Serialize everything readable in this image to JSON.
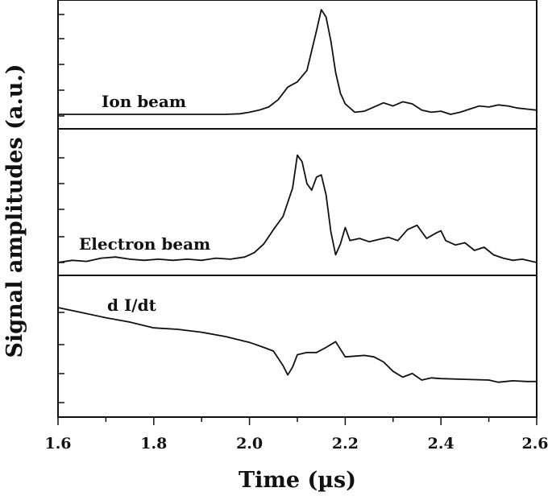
{
  "chart_data": {
    "type": "line",
    "xlabel": "Time (µs)",
    "ylabel": "Signal amplitudes (a.u.)",
    "xlim": [
      1.6,
      2.6
    ],
    "xticks": [
      "1.6",
      "1.8",
      "2.0",
      "2.2",
      "2.4",
      "2.6"
    ],
    "grid": false,
    "panels": [
      {
        "name": "Ion beam",
        "ylim": [
          0,
          1
        ],
        "points": [
          [
            1.6,
            0.0
          ],
          [
            1.95,
            0.0
          ],
          [
            1.98,
            0.005
          ],
          [
            2.0,
            0.02
          ],
          [
            2.02,
            0.04
          ],
          [
            2.04,
            0.07
          ],
          [
            2.06,
            0.14
          ],
          [
            2.08,
            0.26
          ],
          [
            2.1,
            0.31
          ],
          [
            2.12,
            0.42
          ],
          [
            2.14,
            0.8
          ],
          [
            2.15,
            1.0
          ],
          [
            2.16,
            0.93
          ],
          [
            2.17,
            0.7
          ],
          [
            2.18,
            0.4
          ],
          [
            2.19,
            0.2
          ],
          [
            2.2,
            0.1
          ],
          [
            2.22,
            0.02
          ],
          [
            2.24,
            0.03
          ],
          [
            2.26,
            0.07
          ],
          [
            2.28,
            0.11
          ],
          [
            2.3,
            0.08
          ],
          [
            2.32,
            0.12
          ],
          [
            2.34,
            0.1
          ],
          [
            2.36,
            0.04
          ],
          [
            2.38,
            0.02
          ],
          [
            2.4,
            0.03
          ],
          [
            2.42,
            0.0
          ],
          [
            2.44,
            0.02
          ],
          [
            2.46,
            0.05
          ],
          [
            2.48,
            0.08
          ],
          [
            2.5,
            0.07
          ],
          [
            2.52,
            0.09
          ],
          [
            2.54,
            0.08
          ],
          [
            2.56,
            0.06
          ],
          [
            2.58,
            0.05
          ],
          [
            2.6,
            0.04
          ]
        ]
      },
      {
        "name": "Electron beam",
        "ylim": [
          0,
          1
        ],
        "points": [
          [
            1.6,
            0.0
          ],
          [
            1.63,
            0.02
          ],
          [
            1.66,
            0.01
          ],
          [
            1.69,
            0.04
          ],
          [
            1.72,
            0.05
          ],
          [
            1.75,
            0.03
          ],
          [
            1.78,
            0.02
          ],
          [
            1.81,
            0.03
          ],
          [
            1.84,
            0.02
          ],
          [
            1.87,
            0.03
          ],
          [
            1.9,
            0.02
          ],
          [
            1.93,
            0.04
          ],
          [
            1.96,
            0.03
          ],
          [
            1.99,
            0.05
          ],
          [
            2.01,
            0.09
          ],
          [
            2.03,
            0.17
          ],
          [
            2.05,
            0.3
          ],
          [
            2.07,
            0.42
          ],
          [
            2.09,
            0.68
          ],
          [
            2.1,
            0.98
          ],
          [
            2.11,
            0.92
          ],
          [
            2.12,
            0.72
          ],
          [
            2.13,
            0.66
          ],
          [
            2.14,
            0.78
          ],
          [
            2.15,
            0.8
          ],
          [
            2.16,
            0.62
          ],
          [
            2.17,
            0.28
          ],
          [
            2.18,
            0.07
          ],
          [
            2.19,
            0.17
          ],
          [
            2.2,
            0.32
          ],
          [
            2.21,
            0.2
          ],
          [
            2.23,
            0.22
          ],
          [
            2.25,
            0.19
          ],
          [
            2.27,
            0.21
          ],
          [
            2.29,
            0.23
          ],
          [
            2.31,
            0.2
          ],
          [
            2.33,
            0.3
          ],
          [
            2.35,
            0.34
          ],
          [
            2.37,
            0.22
          ],
          [
            2.39,
            0.27
          ],
          [
            2.4,
            0.29
          ],
          [
            2.41,
            0.2
          ],
          [
            2.43,
            0.16
          ],
          [
            2.45,
            0.18
          ],
          [
            2.47,
            0.11
          ],
          [
            2.49,
            0.14
          ],
          [
            2.51,
            0.07
          ],
          [
            2.53,
            0.04
          ],
          [
            2.55,
            0.02
          ],
          [
            2.57,
            0.03
          ],
          [
            2.59,
            0.01
          ],
          [
            2.6,
            0.0
          ]
        ]
      },
      {
        "name": "d I/dt",
        "ylim": [
          0,
          1
        ],
        "points": [
          [
            1.6,
            1.0
          ],
          [
            1.65,
            0.93
          ],
          [
            1.7,
            0.86
          ],
          [
            1.75,
            0.8
          ],
          [
            1.8,
            0.72
          ],
          [
            1.85,
            0.7
          ],
          [
            1.9,
            0.66
          ],
          [
            1.95,
            0.6
          ],
          [
            2.0,
            0.52
          ],
          [
            2.03,
            0.45
          ],
          [
            2.05,
            0.4
          ],
          [
            2.07,
            0.2
          ],
          [
            2.08,
            0.07
          ],
          [
            2.09,
            0.18
          ],
          [
            2.1,
            0.35
          ],
          [
            2.12,
            0.38
          ],
          [
            2.14,
            0.38
          ],
          [
            2.16,
            0.45
          ],
          [
            2.18,
            0.53
          ],
          [
            2.2,
            0.32
          ],
          [
            2.22,
            0.33
          ],
          [
            2.24,
            0.34
          ],
          [
            2.26,
            0.32
          ],
          [
            2.28,
            0.25
          ],
          [
            2.3,
            0.12
          ],
          [
            2.32,
            0.04
          ],
          [
            2.34,
            0.09
          ],
          [
            2.36,
            0.0
          ],
          [
            2.38,
            0.03
          ],
          [
            2.4,
            0.02
          ],
          [
            2.45,
            0.01
          ],
          [
            2.5,
            0.0
          ],
          [
            2.52,
            -0.03
          ],
          [
            2.55,
            -0.01
          ],
          [
            2.58,
            -0.02
          ],
          [
            2.6,
            -0.02
          ]
        ]
      }
    ]
  },
  "labels": {
    "ylabel": "Signal amplitudes (a.u.)",
    "xlabel": "Time (µs)",
    "ion": "Ion beam",
    "electron": "Electron beam",
    "didt": "d I/dt",
    "xtick_0": "1.6",
    "xtick_1": "1.8",
    "xtick_2": "2.0",
    "xtick_3": "2.2",
    "xtick_4": "2.4",
    "xtick_5": "2.6"
  },
  "colors": {
    "line": "#111111",
    "background": "#ffffff"
  }
}
